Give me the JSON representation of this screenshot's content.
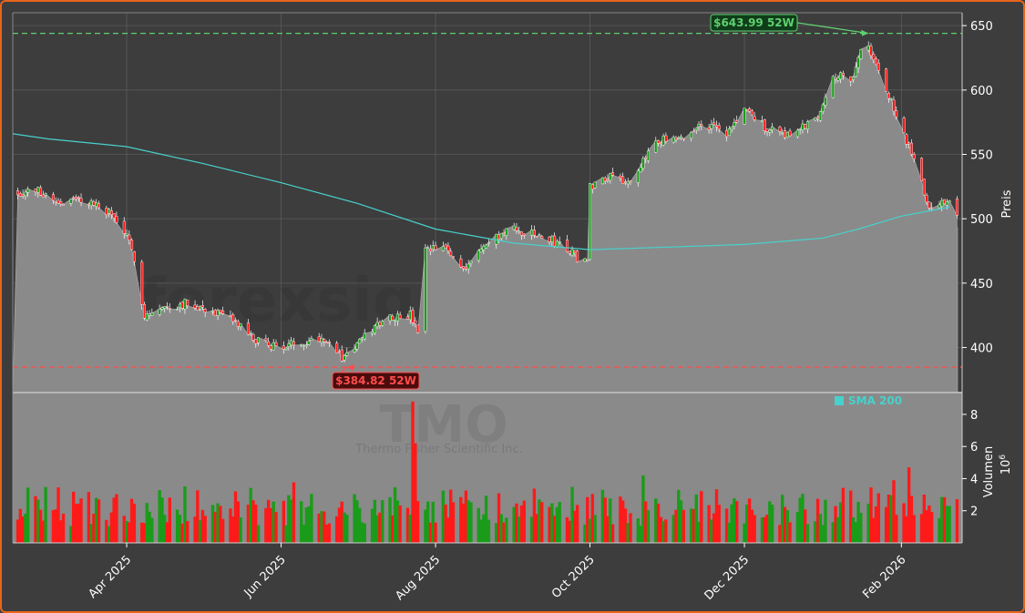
{
  "chart_data": [
    {
      "type": "candlestick",
      "panel": "price",
      "watermark": "forexsignale.trade",
      "ylabel": "Preis",
      "ylim": [
        365,
        660
      ],
      "yticks": [
        400,
        450,
        500,
        550,
        600,
        650
      ],
      "x_range": [
        "2025-02-15",
        "2026-02-25"
      ],
      "xticks": [
        {
          "date": "2025-04-01",
          "label": "Apr 2025"
        },
        {
          "date": "2025-06-01",
          "label": "Jun 2025"
        },
        {
          "date": "2025-08-01",
          "label": "Aug 2025"
        },
        {
          "date": "2025-10-01",
          "label": "Oct 2025"
        },
        {
          "date": "2025-12-01",
          "label": "Dec 2025"
        },
        {
          "date": "2026-02-01",
          "label": "Feb 2026"
        }
      ],
      "close_path": [
        [
          "2025-02-15",
          520
        ],
        [
          "2025-02-25",
          522
        ],
        [
          "2025-03-05",
          513
        ],
        [
          "2025-03-15",
          515
        ],
        [
          "2025-03-25",
          505
        ],
        [
          "2025-03-31",
          490
        ],
        [
          "2025-04-04",
          470
        ],
        [
          "2025-04-08",
          425
        ],
        [
          "2025-04-15",
          430
        ],
        [
          "2025-04-25",
          435
        ],
        [
          "2025-05-05",
          428
        ],
        [
          "2025-05-15",
          418
        ],
        [
          "2025-05-22",
          405
        ],
        [
          "2025-06-01",
          400
        ],
        [
          "2025-06-10",
          405
        ],
        [
          "2025-06-18",
          408
        ],
        [
          "2025-06-25",
          392
        ],
        [
          "2025-07-03",
          406
        ],
        [
          "2025-07-12",
          424
        ],
        [
          "2025-07-22",
          425
        ],
        [
          "2025-07-25",
          412
        ],
        [
          "2025-07-27",
          474
        ],
        [
          "2025-08-04",
          478
        ],
        [
          "2025-08-12",
          462
        ],
        [
          "2025-08-20",
          478
        ],
        [
          "2025-08-30",
          492
        ],
        [
          "2025-09-10",
          487
        ],
        [
          "2025-09-20",
          480
        ],
        [
          "2025-09-27",
          468
        ],
        [
          "2025-09-30",
          468
        ],
        [
          "2025-10-01",
          525
        ],
        [
          "2025-10-10",
          536
        ],
        [
          "2025-10-18",
          525
        ],
        [
          "2025-10-26",
          562
        ],
        [
          "2025-11-05",
          560
        ],
        [
          "2025-11-15",
          575
        ],
        [
          "2025-11-24",
          565
        ],
        [
          "2025-12-01",
          585
        ],
        [
          "2025-12-10",
          570
        ],
        [
          "2025-12-20",
          565
        ],
        [
          "2025-12-30",
          580
        ],
        [
          "2026-01-05",
          612
        ],
        [
          "2026-01-12",
          608
        ],
        [
          "2026-01-16",
          630
        ],
        [
          "2026-01-19",
          632
        ],
        [
          "2026-01-24",
          610
        ],
        [
          "2026-01-31",
          575
        ],
        [
          "2026-02-07",
          540
        ],
        [
          "2026-02-12",
          508
        ],
        [
          "2026-02-20",
          515
        ],
        [
          "2026-02-23",
          505
        ]
      ],
      "annotations": [
        {
          "label": "$643.99 52W",
          "value": 643.99,
          "date": "2026-01-19",
          "color": "#5fcf6f",
          "line": "dashed"
        },
        {
          "label": "$384.82 52W",
          "value": 384.82,
          "date": "2025-06-27",
          "color": "#ff4d4d",
          "line": "dashed"
        }
      ],
      "series": [
        {
          "name": "SMA 200",
          "color": "#48d1cc",
          "points": [
            [
              "2025-02-15",
              566
            ],
            [
              "2025-03-01",
              562
            ],
            [
              "2025-04-01",
              556
            ],
            [
              "2025-05-01",
              543
            ],
            [
              "2025-06-01",
              528
            ],
            [
              "2025-07-01",
              512
            ],
            [
              "2025-08-01",
              492
            ],
            [
              "2025-09-01",
              481
            ],
            [
              "2025-10-01",
              476
            ],
            [
              "2025-11-01",
              478
            ],
            [
              "2025-12-01",
              480
            ],
            [
              "2026-01-01",
              485
            ],
            [
              "2026-01-15",
              492
            ],
            [
              "2026-02-01",
              502
            ],
            [
              "2026-02-20",
              509
            ]
          ]
        }
      ],
      "grid": true,
      "colors": {
        "up": "#1a9c1a",
        "down": "#ff1a1a",
        "area": "#8a8a8a",
        "background": "#3d3d3d"
      }
    },
    {
      "type": "bar",
      "panel": "volume",
      "watermark": "TMO",
      "watermark_sub": "Thermo Fisher Scientific Inc.",
      "ylabel": "Volumen",
      "yscale_label": "10^6",
      "ylim": [
        0,
        9.3
      ],
      "yticks": [
        2,
        4,
        6,
        8
      ],
      "legend": {
        "label": "SMA 200",
        "placement": "top-right"
      },
      "notable_values": [
        {
          "date": "2025-07-23",
          "value": 8.8
        },
        {
          "date": "2025-07-24",
          "value": 6.2
        },
        {
          "date": "2025-10-22",
          "value": 4.2
        },
        {
          "date": "2026-01-29",
          "value": 3.9
        },
        {
          "date": "2026-02-04",
          "value": 4.7
        }
      ],
      "typical_range": [
        1.0,
        3.8
      ]
    }
  ]
}
